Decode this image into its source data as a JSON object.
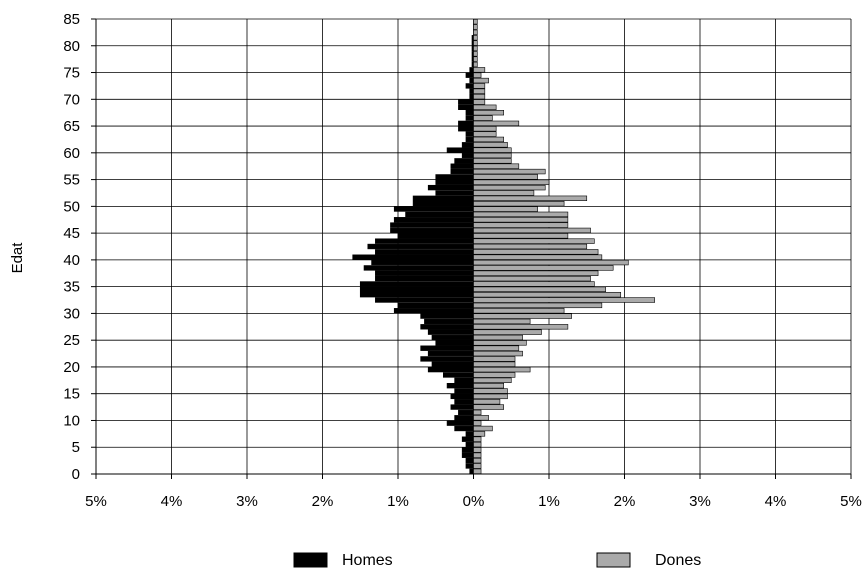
{
  "chart_data": {
    "type": "bar",
    "orientation": "horizontal",
    "subtype": "population-pyramid",
    "title": "",
    "xlabel": "",
    "ylabel": "Edat",
    "xlim": [
      -5,
      5
    ],
    "ylim": [
      0,
      85
    ],
    "x_ticks": [
      -5,
      -4,
      -3,
      -2,
      -1,
      0,
      1,
      2,
      3,
      4,
      5
    ],
    "x_tick_labels": [
      "5%",
      "4%",
      "3%",
      "2%",
      "1%",
      "0%",
      "1%",
      "2%",
      "3%",
      "4%",
      "5%"
    ],
    "y_ticks": [
      0,
      5,
      10,
      15,
      20,
      25,
      30,
      35,
      40,
      45,
      50,
      55,
      60,
      65,
      70,
      75,
      80,
      85
    ],
    "y_tick_labels": [
      "0",
      "5",
      "10",
      "15",
      "20",
      "25",
      "30",
      "35",
      "40",
      "45",
      "50",
      "55",
      "60",
      "65",
      "70",
      "75",
      "80",
      "85"
    ],
    "grid": true,
    "legend_position": "bottom",
    "ages": [
      0,
      1,
      2,
      3,
      4,
      5,
      6,
      7,
      8,
      9,
      10,
      11,
      12,
      13,
      14,
      15,
      16,
      17,
      18,
      19,
      20,
      21,
      22,
      23,
      24,
      25,
      26,
      27,
      28,
      29,
      30,
      31,
      32,
      33,
      34,
      35,
      36,
      37,
      38,
      39,
      40,
      41,
      42,
      43,
      44,
      45,
      46,
      47,
      48,
      49,
      50,
      51,
      52,
      53,
      54,
      55,
      56,
      57,
      58,
      59,
      60,
      61,
      62,
      63,
      64,
      65,
      66,
      67,
      68,
      69,
      70,
      71,
      72,
      73,
      74,
      75,
      76,
      77,
      78,
      79,
      80,
      81,
      82,
      83,
      84,
      85
    ],
    "series": [
      {
        "name": "Homes",
        "color": "#000000",
        "side": "left",
        "values": [
          0.05,
          0.1,
          0.1,
          0.15,
          0.15,
          0.1,
          0.15,
          0.1,
          0.25,
          0.35,
          0.25,
          0.2,
          0.3,
          0.25,
          0.3,
          0.25,
          0.35,
          0.25,
          0.4,
          0.6,
          0.55,
          0.7,
          0.6,
          0.7,
          0.5,
          0.55,
          0.6,
          0.7,
          0.65,
          0.7,
          1.05,
          1.0,
          1.3,
          1.5,
          1.5,
          1.5,
          1.3,
          1.3,
          1.45,
          1.35,
          1.6,
          1.3,
          1.4,
          1.3,
          1.0,
          1.1,
          1.1,
          1.05,
          0.9,
          1.05,
          0.8,
          0.8,
          0.5,
          0.6,
          0.5,
          0.5,
          0.3,
          0.3,
          0.25,
          0.15,
          0.35,
          0.15,
          0.1,
          0.1,
          0.2,
          0.2,
          0.1,
          0.1,
          0.2,
          0.2,
          0.05,
          0.05,
          0.1,
          0.05,
          0.1,
          0.05,
          0.02,
          0.02,
          0.02,
          0.02,
          0.02,
          0.02,
          0.0,
          0.0,
          0.0,
          0.0
        ]
      },
      {
        "name": "Dones",
        "color": "#aaaaaa",
        "side": "right",
        "values": [
          0.1,
          0.1,
          0.1,
          0.1,
          0.1,
          0.1,
          0.1,
          0.15,
          0.25,
          0.1,
          0.2,
          0.1,
          0.4,
          0.35,
          0.45,
          0.45,
          0.4,
          0.5,
          0.55,
          0.75,
          0.55,
          0.55,
          0.65,
          0.6,
          0.7,
          0.65,
          0.9,
          1.25,
          0.75,
          1.3,
          1.2,
          1.7,
          2.4,
          1.95,
          1.75,
          1.6,
          1.55,
          1.65,
          1.85,
          2.05,
          1.7,
          1.65,
          1.5,
          1.6,
          1.25,
          1.55,
          1.25,
          1.25,
          1.25,
          0.85,
          1.2,
          1.5,
          0.8,
          0.95,
          1.0,
          0.85,
          0.95,
          0.6,
          0.5,
          0.5,
          0.5,
          0.45,
          0.4,
          0.3,
          0.3,
          0.6,
          0.25,
          0.4,
          0.3,
          0.15,
          0.15,
          0.15,
          0.15,
          0.2,
          0.1,
          0.15,
          0.05,
          0.05,
          0.05,
          0.05,
          0.05,
          0.05,
          0.05,
          0.05,
          0.05,
          0.0
        ]
      }
    ],
    "colors": {
      "homes": "#000000",
      "dones": "#aaaaaa",
      "grid": "#000000"
    }
  },
  "legend": {
    "homes_label": "Homes",
    "dones_label": "Dones"
  }
}
